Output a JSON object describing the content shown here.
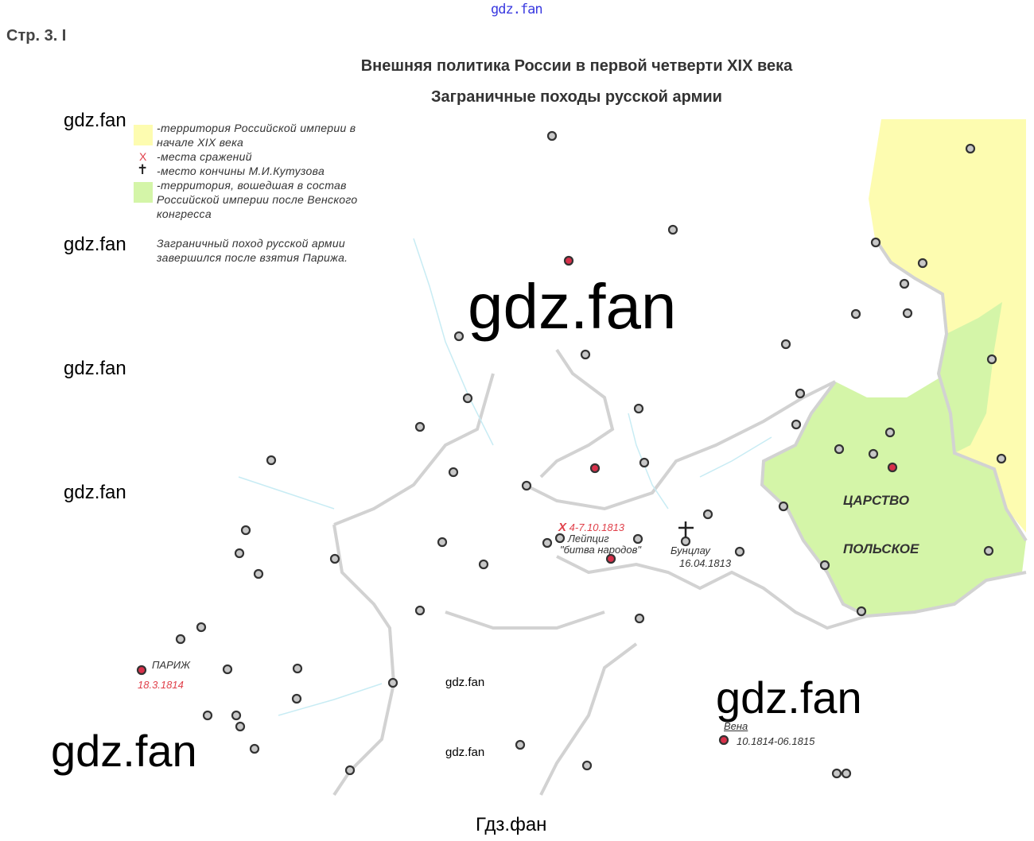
{
  "watermarks": {
    "top": "gdz.fan",
    "side": [
      "gdz.fan",
      "gdz.fan",
      "gdz.fan",
      "gdz.fan"
    ],
    "center": "gdz.fan",
    "bottom_left": "gdz.fan",
    "bottom_right": "gdz.fan",
    "small": [
      "gdz.fan",
      "gdz.fan"
    ],
    "footer": "Гдз.фан"
  },
  "page_label": "Стр. 3. I",
  "title": "Внешняя политика России в первой четверти XIX века",
  "subtitle": "Заграничные походы русской армии",
  "legend": {
    "items": [
      {
        "symbol": "yellow-area",
        "color": "#fdfcb0",
        "text": "-территория Российской империи в начале XIX века"
      },
      {
        "symbol": "red-x",
        "color": "#e0404a",
        "glyph": "X",
        "text": "-места сражений"
      },
      {
        "symbol": "cross",
        "glyph": "✝",
        "text": "-место кончины М.И.Кутузова"
      },
      {
        "symbol": "green-area",
        "color": "#d4f5a8",
        "text": "-территория, вошедшая в состав Российской империи после Венского конгресса"
      }
    ],
    "note": "Заграничный поход русской армии завершился после взятия Парижа."
  },
  "places": {
    "leipzig": {
      "date": "4-7.10.1813",
      "name": "Лейпциг",
      "desc": "\"битва народов\""
    },
    "bunzlau": {
      "name": "Бунцлау",
      "date": "16.04.1813"
    },
    "paris": {
      "name": "ПАРИЖ",
      "date": "18.3.1814"
    },
    "vienna": {
      "name": "Вена",
      "date": "10.1814-06.1815"
    },
    "poland": {
      "line1": "ЦАРСТВО",
      "line2": "ПОЛЬСКОЕ"
    }
  },
  "colors": {
    "empire": "#fdfcb0",
    "poland": "#d4f5a8",
    "battle": "#d8304a",
    "city": "#9a9a9a",
    "border": "#d0d0d0",
    "river": "#c8ecf4"
  }
}
